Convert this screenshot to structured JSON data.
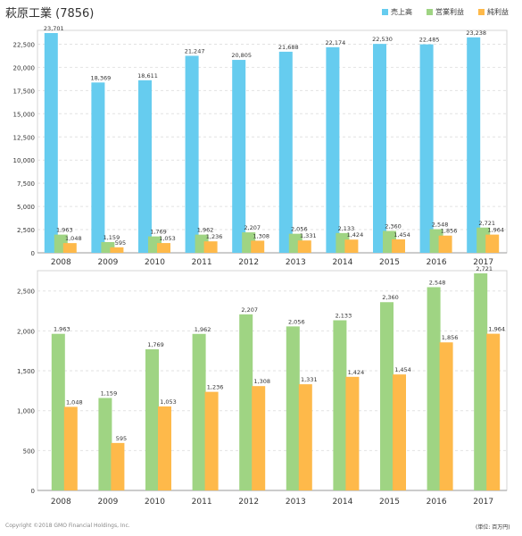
{
  "page": {
    "title": "萩原工業 (7856)",
    "copyright": "Copyright ©2018 GMO Financial Holdings, Inc.",
    "unit_note": "(単位: 百万円)"
  },
  "colors": {
    "sales": "#66ccef",
    "operating": "#9fd483",
    "net": "#feb94a"
  },
  "legend": [
    {
      "label": "売上高",
      "color": "#66ccef"
    },
    {
      "label": "営業利益",
      "color": "#9fd483"
    },
    {
      "label": "純利益",
      "color": "#feb94a"
    }
  ],
  "chart_data": [
    {
      "type": "bar",
      "categories": [
        "2008",
        "2009",
        "2010",
        "2011",
        "2012",
        "2013",
        "2014",
        "2015",
        "2016",
        "2017"
      ],
      "ylim": [
        0,
        23701
      ],
      "yticks": [
        0,
        2500,
        5000,
        7500,
        10000,
        12500,
        15000,
        17500,
        20000,
        22500
      ],
      "ytick_labels": [
        "0",
        "2,500",
        "5,000",
        "7,500",
        "10,000",
        "12,500",
        "15,000",
        "17,500",
        "20,000",
        "22,500"
      ],
      "grid": true,
      "legend_position": "top-right",
      "series": [
        {
          "name": "売上高",
          "color": "#66ccef",
          "values": [
            23701,
            18369,
            18611,
            21247,
            20805,
            21688,
            22174,
            22530,
            22485,
            23238
          ],
          "labels": [
            "23,701",
            "18,369",
            "18,611",
            "21,247",
            "20,805",
            "21,688",
            "22,174",
            "22,530",
            "22,485",
            "23,238"
          ]
        },
        {
          "name": "営業利益",
          "color": "#9fd483",
          "values": [
            1963,
            1159,
            1769,
            1962,
            2207,
            2056,
            2133,
            2360,
            2548,
            2721
          ],
          "labels": [
            "1,963",
            "1,159",
            "1,769",
            "1,962",
            "2,207",
            "2,056",
            "2,133",
            "2,360",
            "2,548",
            "2,721"
          ]
        },
        {
          "name": "純利益",
          "color": "#feb94a",
          "values": [
            1048,
            595,
            1053,
            1236,
            1308,
            1331,
            1424,
            1454,
            1856,
            1964
          ],
          "labels": [
            "1,048",
            "595",
            "1,053",
            "1,236",
            "1,308",
            "1,331",
            "1,424",
            "1,454",
            "1,856",
            "1,964"
          ]
        }
      ]
    },
    {
      "type": "bar",
      "categories": [
        "2008",
        "2009",
        "2010",
        "2011",
        "2012",
        "2013",
        "2014",
        "2015",
        "2016",
        "2017"
      ],
      "ylim": [
        0,
        2721
      ],
      "yticks": [
        0,
        500,
        1000,
        1500,
        2000,
        2500
      ],
      "ytick_labels": [
        "0",
        "500",
        "1,000",
        "1,500",
        "2,000",
        "2,500"
      ],
      "grid": true,
      "series": [
        {
          "name": "営業利益",
          "color": "#9fd483",
          "values": [
            1963,
            1159,
            1769,
            1962,
            2207,
            2056,
            2133,
            2360,
            2548,
            2721
          ],
          "labels": [
            "1,963",
            "1,159",
            "1,769",
            "1,962",
            "2,207",
            "2,056",
            "2,133",
            "2,360",
            "2,548",
            "2,721"
          ]
        },
        {
          "name": "純利益",
          "color": "#feb94a",
          "values": [
            1048,
            595,
            1053,
            1236,
            1308,
            1331,
            1424,
            1454,
            1856,
            1964
          ],
          "labels": [
            "1,048",
            "595",
            "1,053",
            "1,236",
            "1,308",
            "1,331",
            "1,424",
            "1,454",
            "1,856",
            "1,964"
          ]
        }
      ]
    }
  ]
}
